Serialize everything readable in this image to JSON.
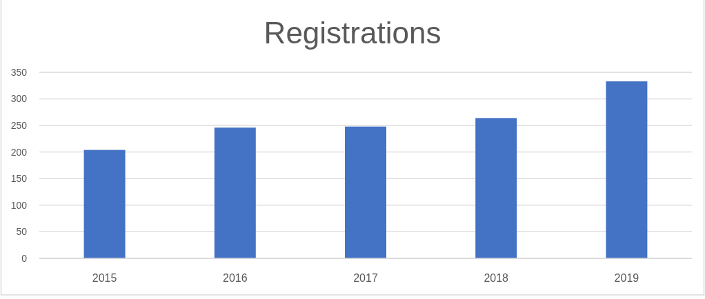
{
  "chart_data": {
    "type": "bar",
    "title": "Registrations",
    "categories": [
      "2015",
      "2016",
      "2017",
      "2018",
      "2019"
    ],
    "values": [
      204,
      246,
      248,
      264,
      333
    ],
    "color": "#4472c4",
    "ylim": [
      0,
      350
    ],
    "yticks": [
      0,
      50,
      100,
      150,
      200,
      250,
      300,
      350
    ],
    "grid": "y"
  }
}
